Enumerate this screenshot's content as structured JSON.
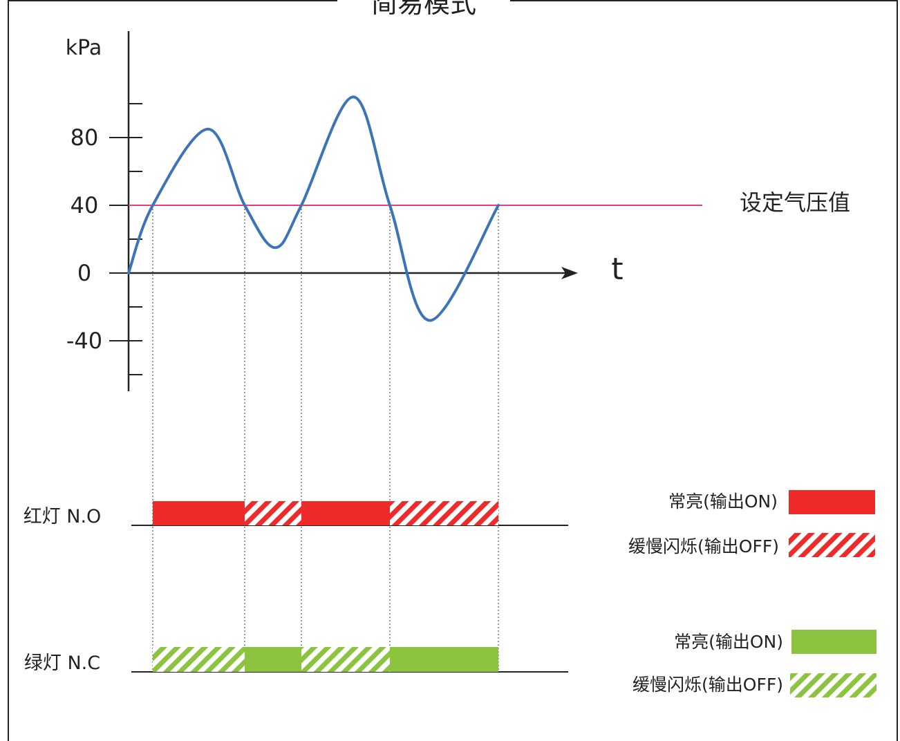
{
  "title": "简易模式",
  "y_unit": "kPa",
  "x_label": "t",
  "y_ticks": [
    {
      "value": 80,
      "label": "80"
    },
    {
      "value": 40,
      "label": "40"
    },
    {
      "value": 0,
      "label": "0"
    },
    {
      "value": -40,
      "label": "-40"
    }
  ],
  "setpoint": {
    "value": 40,
    "label": "设定气压值"
  },
  "waveform": {
    "color": "#3c74b8",
    "points_t_kPa": [
      [
        0,
        0
      ],
      [
        35,
        40
      ],
      [
        115,
        85
      ],
      [
        168,
        40
      ],
      [
        212,
        15
      ],
      [
        250,
        40
      ],
      [
        325,
        104
      ],
      [
        378,
        40
      ],
      [
        436,
        -28
      ],
      [
        535,
        40
      ]
    ]
  },
  "crossings_t": [
    35,
    168,
    250,
    378,
    535
  ],
  "channels": [
    {
      "label": "红灯 N.O",
      "segments": [
        {
          "state": "on"
        },
        {
          "state": "blink"
        },
        {
          "state": "on"
        },
        {
          "state": "blink"
        }
      ]
    },
    {
      "label": "绿灯 N.C",
      "segments": [
        {
          "state": "blink"
        },
        {
          "state": "on"
        },
        {
          "state": "blink"
        },
        {
          "state": "on"
        }
      ]
    }
  ],
  "legend": {
    "red_on": "常亮(输出ON)",
    "red_blink": "缓慢闪烁(输出OFF)",
    "green_on": "常亮(输出ON)",
    "green_blink": "缓慢闪烁(输出OFF)"
  },
  "colors": {
    "red": "#ee2a2a",
    "green": "#8cc43f",
    "setpoint_line": "#e6398a",
    "axis": "#222222",
    "frame": "#222222"
  }
}
